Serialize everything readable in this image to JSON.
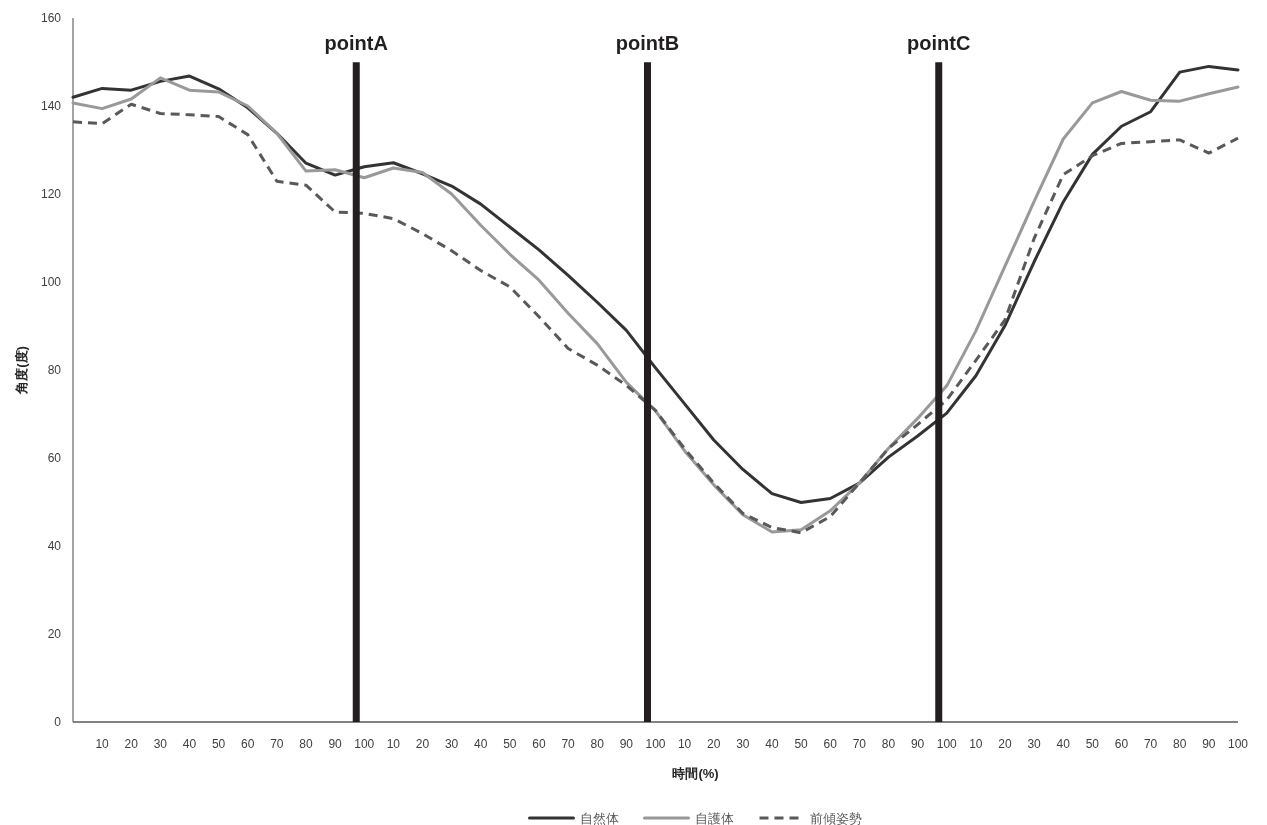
{
  "chart_data": {
    "type": "line",
    "xlabel": "時間(%)",
    "ylabel": "角度(度)",
    "ylim": [
      0,
      160
    ],
    "yticks": [
      0,
      20,
      40,
      60,
      80,
      100,
      120,
      140,
      160
    ],
    "categories": [
      null,
      "10",
      "20",
      "30",
      "40",
      "50",
      "60",
      "70",
      "80",
      "90",
      "100",
      "10",
      "20",
      "30",
      "40",
      "50",
      "60",
      "70",
      "80",
      "90",
      "100",
      "10",
      "20",
      "30",
      "40",
      "50",
      "60",
      "70",
      "80",
      "90",
      "100",
      "10",
      "20",
      "30",
      "40",
      "50",
      "60",
      "70",
      "80",
      "90",
      "100"
    ],
    "grid": false,
    "legend": "bottom",
    "marker": "none",
    "annotations": [
      "pointA",
      "pointB",
      "pointC"
    ],
    "series": [
      {
        "name": "自然体",
        "color": "#333333",
        "line_style": "solid",
        "values": [
          142,
          144,
          143.6,
          145.6,
          146.8,
          143.9,
          139.6,
          133.8,
          127,
          124.3,
          126.2,
          127.1,
          124.6,
          121.8,
          117.7,
          112.5,
          107.3,
          101.5,
          95.4,
          89,
          80.5,
          72.3,
          64.1,
          57.4,
          51.9,
          49.9,
          50.8,
          54.3,
          60.2,
          65,
          70.2,
          78.7,
          90.1,
          104.6,
          118.2,
          129,
          135.4,
          138.7,
          147.7,
          149,
          148.2
        ]
      },
      {
        "name": "自護体",
        "color": "#999999",
        "line_style": "solid",
        "values": [
          140.7,
          139.4,
          141.6,
          146.4,
          143.6,
          143.2,
          140,
          133.8,
          125.2,
          125.5,
          123.7,
          125.9,
          124.9,
          120,
          112.9,
          106.3,
          100.4,
          92.9,
          86,
          77.2,
          70.7,
          61.6,
          53.9,
          47.1,
          43.2,
          43.7,
          48,
          54.3,
          62.2,
          69,
          76.4,
          88.9,
          103.6,
          118.3,
          132.5,
          140.7,
          143.3,
          141.3,
          141.1,
          142.8,
          144.3
        ]
      },
      {
        "name": "前傾姿勢",
        "color": "#595959",
        "line_style": "dashed",
        "values": [
          136.4,
          136,
          140.4,
          138.3,
          138,
          137.6,
          133.5,
          122.9,
          122,
          115.9,
          115.6,
          114.4,
          111,
          107.1,
          102.6,
          98.9,
          92.1,
          84.9,
          81.1,
          76.5,
          70.8,
          62.1,
          54.3,
          47.4,
          44.2,
          43,
          46.7,
          54.3,
          62.2,
          67.6,
          73.2,
          82.2,
          91.4,
          109.9,
          124.4,
          128.7,
          131.5,
          131.9,
          132.3,
          129.3,
          132.7
        ]
      }
    ]
  }
}
